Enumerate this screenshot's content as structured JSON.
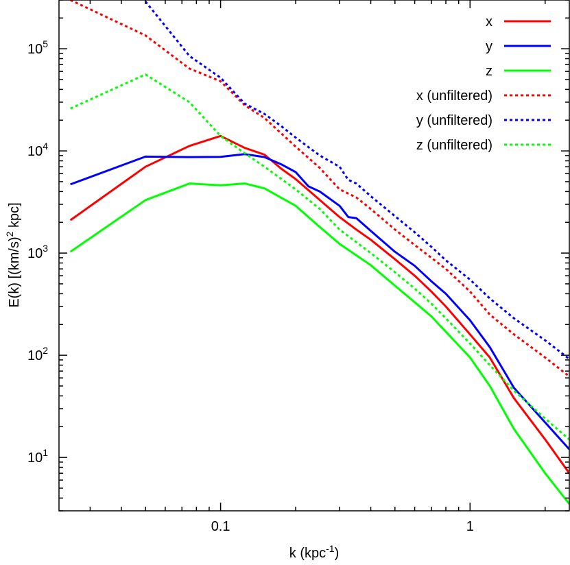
{
  "chart_data": {
    "type": "line",
    "xlabel": {
      "base": "k (kpc",
      "exp": "-1",
      "tail": ")"
    },
    "ylabel": {
      "base": "E(k) [(km/s)",
      "exp": "2",
      "tail": " kpc]"
    },
    "xscale": "log",
    "yscale": "log",
    "xlim": [
      0.0225,
      2.5
    ],
    "ylim": [
      3,
      300000
    ],
    "xticks": [
      {
        "value": 0.1,
        "label": "0.1"
      },
      {
        "value": 1,
        "label": "1"
      }
    ],
    "yticks": [
      {
        "value": 10,
        "base": "10",
        "exp": "1"
      },
      {
        "value": 100,
        "base": "10",
        "exp": "2"
      },
      {
        "value": 1000,
        "base": "10",
        "exp": "3"
      },
      {
        "value": 10000,
        "base": "10",
        "exp": "4"
      },
      {
        "value": 100000,
        "base": "10",
        "exp": "5"
      }
    ],
    "grid": false,
    "legend_position": "top-right",
    "series": [
      {
        "name": "x",
        "color": "#ff0000",
        "dash": "solid",
        "x": [
          0.025,
          0.05,
          0.075,
          0.1,
          0.125,
          0.15,
          0.175,
          0.2,
          0.25,
          0.3,
          0.35,
          0.4,
          0.5,
          0.6,
          0.7,
          0.8,
          1.0,
          1.2,
          1.5,
          2.0,
          2.5
        ],
        "y": [
          2100,
          7000,
          11200,
          14000,
          10700,
          9200,
          6700,
          5300,
          3300,
          2250,
          1700,
          1350,
          870,
          600,
          420,
          300,
          160,
          95,
          38,
          15,
          7
        ]
      },
      {
        "name": "y",
        "color": "#0000ff",
        "dash": "solid",
        "x": [
          0.025,
          0.05,
          0.075,
          0.1,
          0.125,
          0.15,
          0.175,
          0.2,
          0.225,
          0.25,
          0.3,
          0.325,
          0.35,
          0.4,
          0.5,
          0.6,
          0.7,
          0.8,
          1.0,
          1.2,
          1.5,
          2.0,
          2.5
        ],
        "y": [
          4700,
          8800,
          8700,
          8750,
          9300,
          8700,
          7400,
          6200,
          4500,
          4000,
          2900,
          2250,
          2200,
          1650,
          1030,
          750,
          530,
          400,
          220,
          120,
          48,
          22,
          12
        ]
      },
      {
        "name": "z",
        "color": "#00ff00",
        "dash": "solid",
        "x": [
          0.025,
          0.05,
          0.075,
          0.1,
          0.125,
          0.15,
          0.2,
          0.25,
          0.3,
          0.4,
          0.5,
          0.6,
          0.7,
          0.8,
          1.0,
          1.2,
          1.5,
          2.0,
          2.5
        ],
        "y": [
          1030,
          3300,
          4800,
          4600,
          4800,
          4300,
          2900,
          1800,
          1230,
          760,
          480,
          330,
          240,
          170,
          95,
          50,
          19,
          7,
          3.5
        ]
      },
      {
        "name": "x (unfiltered)",
        "color": "#ff0000",
        "dash": "dotted",
        "x": [
          0.025,
          0.05,
          0.075,
          0.1,
          0.125,
          0.15,
          0.2,
          0.25,
          0.3,
          0.35,
          0.4,
          0.5,
          0.6,
          0.7,
          0.8,
          1.0,
          1.2,
          1.5,
          2.0,
          2.5
        ],
        "y": [
          300000,
          135000,
          64000,
          48000,
          28000,
          21000,
          11000,
          6800,
          4200,
          3500,
          2700,
          1700,
          1200,
          900,
          700,
          420,
          250,
          160,
          95,
          62
        ]
      },
      {
        "name": "y (unfiltered)",
        "color": "#0000ff",
        "dash": "dotted",
        "x": [
          0.05,
          0.075,
          0.1,
          0.125,
          0.15,
          0.175,
          0.2,
          0.25,
          0.3,
          0.325,
          0.35,
          0.4,
          0.5,
          0.6,
          0.7,
          0.8,
          1.0,
          1.2,
          1.5,
          2.0,
          2.5
        ],
        "y": [
          290000,
          85000,
          52000,
          29000,
          23000,
          17500,
          13500,
          9000,
          7000,
          5200,
          4800,
          3600,
          2300,
          1600,
          1150,
          850,
          550,
          360,
          230,
          140,
          92
        ]
      },
      {
        "name": "z (unfiltered)",
        "color": "#00ff00",
        "dash": "dotted",
        "x": [
          0.025,
          0.05,
          0.075,
          0.1,
          0.125,
          0.15,
          0.2,
          0.25,
          0.3,
          0.4,
          0.5,
          0.6,
          0.7,
          0.8,
          1.0,
          1.2,
          1.5,
          2.0,
          2.5
        ],
        "y": [
          26000,
          56000,
          30000,
          14000,
          9500,
          7000,
          4200,
          2700,
          1700,
          1000,
          650,
          450,
          320,
          230,
          130,
          80,
          45,
          24,
          15
        ]
      }
    ]
  }
}
